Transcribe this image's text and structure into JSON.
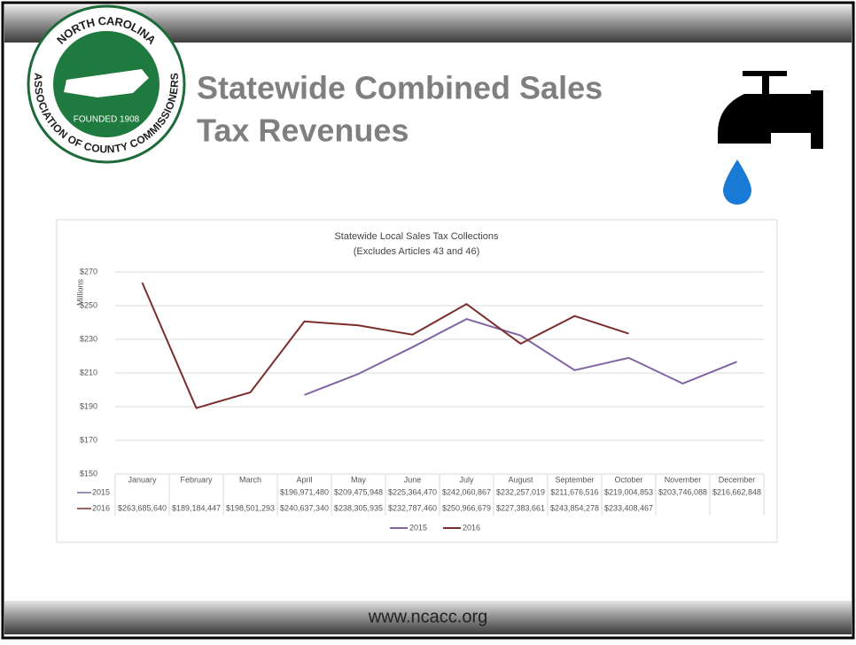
{
  "header": {
    "title_lines": [
      "Statewide Combined Sales",
      "Tax Revenues"
    ]
  },
  "logo": {
    "top_text": "NORTH CAROLINA",
    "ring_text": "ASSOCIATION OF COUNTY COMMISSIONERS",
    "founded": "FOUNDED 1908"
  },
  "footer": {
    "url": "www.ncacc.org"
  },
  "chart_data": {
    "type": "line",
    "title_lines": [
      "Statewide Local Sales Tax Collections",
      "(Excludes Articles 43 and 46)"
    ],
    "y_label": "Millions",
    "categories": [
      "January",
      "February",
      "March",
      "April",
      "May",
      "June",
      "July",
      "August",
      "September",
      "October",
      "November",
      "December"
    ],
    "series": [
      {
        "name": "2015",
        "color": "#8064a2",
        "values": [
          null,
          null,
          null,
          196.97148,
          209.475948,
          225.36447,
          242.060867,
          232.257019,
          211.676516,
          219.004853,
          203.746088,
          216.662848
        ],
        "value_labels": [
          null,
          null,
          null,
          "$196,971,480",
          "$209,475,948",
          "$225,364,470",
          "$242,060,867",
          "$232,257,019",
          "$211,676,516",
          "$219,004,853",
          "$203,746,088",
          "$216,662,848"
        ]
      },
      {
        "name": "2016",
        "color": "#7b2d2d",
        "values": [
          263.68564,
          189.184447,
          198.501293,
          240.63734,
          238.305935,
          232.78746,
          250.966679,
          227.383661,
          243.854278,
          233.408467,
          null,
          null
        ],
        "value_labels": [
          "$263,685,640",
          "$189,184,447",
          "$198,501,293",
          "$240,637,340",
          "$238,305,935",
          "$232,787,460",
          "$250,966,679",
          "$227,383,661",
          "$243,854,278",
          "$233,408,467",
          null,
          null
        ]
      }
    ],
    "ylim": [
      150,
      270
    ],
    "yticks": [
      {
        "value": 150,
        "label": "$150"
      },
      {
        "value": 170,
        "label": "$170"
      },
      {
        "value": 190,
        "label": "$190"
      },
      {
        "value": 210,
        "label": "$210"
      },
      {
        "value": 230,
        "label": "$230"
      },
      {
        "value": 250,
        "label": "$250"
      },
      {
        "value": 270,
        "label": "$270"
      }
    ],
    "grid": true,
    "legend": "bottom"
  }
}
